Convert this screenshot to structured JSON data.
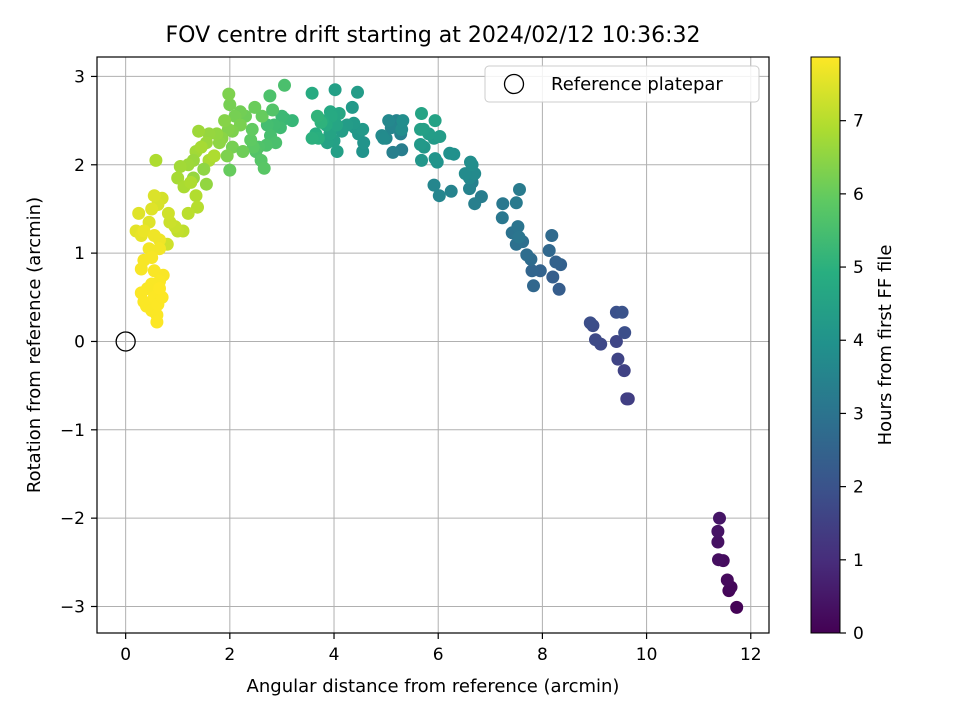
{
  "chart_data": {
    "type": "scatter",
    "title": "FOV centre drift starting at 2024/02/12 10:36:32",
    "xlabel": "Angular distance from reference (arcmin)",
    "ylabel": "Rotation from reference (arcmin)",
    "colorbar_label": "Hours from first FF file",
    "xlim": [
      -0.55,
      12.35
    ],
    "ylim": [
      -3.3,
      3.22
    ],
    "clim": [
      0,
      7.87
    ],
    "xticks": [
      0,
      2,
      4,
      6,
      8,
      10,
      12
    ],
    "xtick_labels": [
      "0",
      "2",
      "4",
      "6",
      "8",
      "10",
      "12"
    ],
    "yticks": [
      -3,
      -2,
      -1,
      0,
      1,
      2,
      3
    ],
    "ytick_labels": [
      "−3",
      "−2",
      "−1",
      "0",
      "1",
      "2",
      "3"
    ],
    "cticks": [
      0,
      1,
      2,
      3,
      4,
      5,
      6,
      7
    ],
    "ctick_labels": [
      "0",
      "1",
      "2",
      "3",
      "4",
      "5",
      "6",
      "7"
    ],
    "grid": true,
    "colormap": "viridis",
    "legend": {
      "placement": "top-right",
      "label": "Reference platepar"
    },
    "reference_point": {
      "x": 0,
      "y": 0
    },
    "points": [
      [
        11.73,
        -3.01,
        0.05
      ],
      [
        11.58,
        -2.82,
        0.1
      ],
      [
        11.62,
        -2.78,
        0.15
      ],
      [
        11.55,
        -2.7,
        0.2
      ],
      [
        11.47,
        -2.48,
        0.25
      ],
      [
        11.38,
        -2.47,
        0.3
      ],
      [
        11.37,
        -2.27,
        0.35
      ],
      [
        11.37,
        -2.15,
        0.4
      ],
      [
        11.4,
        -2.0,
        0.45
      ],
      [
        9.65,
        -0.65,
        1.4
      ],
      [
        9.62,
        -0.65,
        1.45
      ],
      [
        9.57,
        -0.33,
        1.55
      ],
      [
        9.45,
        -0.2,
        1.6
      ],
      [
        9.12,
        -0.03,
        1.7
      ],
      [
        9.02,
        0.02,
        1.75
      ],
      [
        8.97,
        0.18,
        1.8
      ],
      [
        8.92,
        0.21,
        1.85
      ],
      [
        9.42,
        0.0,
        1.65
      ],
      [
        9.58,
        0.1,
        1.9
      ],
      [
        9.42,
        0.33,
        1.95
      ],
      [
        9.53,
        0.33,
        2.0
      ],
      [
        8.32,
        0.59,
        2.3
      ],
      [
        8.2,
        0.73,
        2.35
      ],
      [
        8.35,
        0.87,
        2.4
      ],
      [
        8.26,
        0.9,
        2.45
      ],
      [
        7.96,
        0.8,
        2.5
      ],
      [
        7.8,
        0.8,
        2.55
      ],
      [
        7.83,
        0.63,
        2.6
      ],
      [
        8.13,
        1.03,
        2.65
      ],
      [
        8.18,
        1.2,
        2.7
      ],
      [
        7.78,
        0.93,
        2.75
      ],
      [
        7.7,
        0.98,
        2.8
      ],
      [
        7.62,
        1.13,
        2.85
      ],
      [
        7.5,
        1.1,
        2.9
      ],
      [
        7.42,
        1.23,
        2.95
      ],
      [
        7.53,
        1.3,
        3.0
      ],
      [
        7.55,
        1.18,
        3.05
      ],
      [
        7.23,
        1.4,
        3.1
      ],
      [
        7.24,
        1.56,
        3.15
      ],
      [
        7.5,
        1.57,
        3.2
      ],
      [
        7.56,
        1.72,
        3.25
      ],
      [
        6.83,
        1.64,
        3.3
      ],
      [
        6.7,
        1.56,
        3.35
      ],
      [
        6.65,
        1.8,
        3.4
      ],
      [
        6.6,
        1.73,
        3.45
      ],
      [
        6.25,
        1.7,
        3.5
      ],
      [
        6.02,
        1.65,
        3.55
      ],
      [
        5.92,
        1.77,
        3.6
      ],
      [
        6.6,
        1.85,
        3.65
      ],
      [
        6.7,
        1.9,
        3.7
      ],
      [
        6.52,
        1.9,
        3.75
      ],
      [
        6.65,
        2.0,
        3.8
      ],
      [
        6.62,
        2.03,
        3.85
      ],
      [
        6.3,
        2.12,
        3.9
      ],
      [
        6.22,
        2.13,
        3.95
      ],
      [
        5.98,
        2.03,
        4.0
      ],
      [
        5.94,
        2.07,
        4.05
      ],
      [
        5.68,
        2.05,
        4.1
      ],
      [
        5.73,
        2.2,
        4.15
      ],
      [
        5.66,
        2.23,
        4.2
      ],
      [
        5.92,
        2.3,
        4.25
      ],
      [
        6.03,
        2.32,
        4.3
      ],
      [
        5.82,
        2.35,
        4.35
      ],
      [
        5.72,
        2.4,
        4.4
      ],
      [
        5.66,
        2.4,
        4.45
      ],
      [
        5.94,
        2.5,
        4.5
      ],
      [
        5.68,
        2.58,
        4.55
      ],
      [
        5.3,
        2.17,
        3.3
      ],
      [
        5.13,
        2.14,
        3.35
      ],
      [
        5.28,
        2.35,
        3.4
      ],
      [
        5.18,
        2.45,
        3.45
      ],
      [
        5.2,
        2.5,
        3.5
      ],
      [
        5.1,
        2.42,
        3.55
      ],
      [
        5.0,
        2.3,
        3.6
      ],
      [
        5.05,
        2.5,
        3.65
      ],
      [
        4.92,
        2.33,
        3.7
      ],
      [
        4.95,
        2.3,
        3.75
      ],
      [
        5.3,
        2.4,
        3.8
      ],
      [
        5.32,
        2.5,
        3.85
      ],
      [
        4.55,
        2.15,
        4.0
      ],
      [
        4.57,
        2.25,
        4.05
      ],
      [
        4.47,
        2.35,
        4.1
      ],
      [
        4.4,
        2.42,
        4.15
      ],
      [
        4.55,
        2.4,
        4.2
      ],
      [
        4.38,
        2.47,
        4.25
      ],
      [
        4.25,
        2.45,
        4.3
      ],
      [
        4.15,
        2.38,
        4.35
      ],
      [
        4.06,
        2.15,
        4.4
      ],
      [
        4.0,
        2.27,
        4.45
      ],
      [
        3.87,
        2.25,
        4.5
      ],
      [
        3.92,
        2.35,
        4.55
      ],
      [
        4.05,
        2.45,
        4.6
      ],
      [
        4.1,
        2.58,
        4.65
      ],
      [
        3.93,
        2.6,
        4.7
      ],
      [
        3.95,
        2.55,
        4.75
      ],
      [
        3.85,
        2.45,
        4.8
      ],
      [
        3.78,
        2.5,
        4.85
      ],
      [
        3.65,
        2.35,
        4.9
      ],
      [
        3.7,
        2.3,
        4.95
      ],
      [
        3.58,
        2.3,
        5.0
      ],
      [
        3.75,
        2.48,
        5.05
      ],
      [
        3.68,
        2.55,
        5.1
      ],
      [
        4.35,
        2.65,
        4.2
      ],
      [
        4.45,
        2.82,
        4.3
      ],
      [
        4.02,
        2.85,
        4.4
      ],
      [
        3.58,
        2.81,
        4.8
      ],
      [
        3.2,
        2.5,
        5.2
      ],
      [
        3.05,
        2.52,
        5.25
      ],
      [
        3.0,
        2.55,
        5.3
      ],
      [
        2.97,
        2.42,
        5.35
      ],
      [
        2.85,
        2.45,
        5.4
      ],
      [
        2.72,
        2.45,
        5.45
      ],
      [
        2.78,
        2.33,
        5.5
      ],
      [
        2.88,
        2.25,
        5.55
      ],
      [
        2.7,
        2.22,
        5.6
      ],
      [
        2.55,
        2.2,
        5.65
      ],
      [
        2.5,
        2.15,
        5.7
      ],
      [
        2.6,
        2.05,
        5.75
      ],
      [
        2.66,
        1.96,
        5.8
      ],
      [
        2.45,
        2.2,
        5.85
      ],
      [
        2.4,
        2.28,
        5.9
      ],
      [
        2.43,
        2.4,
        5.95
      ],
      [
        2.62,
        2.55,
        6.0
      ],
      [
        2.48,
        2.65,
        6.05
      ],
      [
        2.77,
        2.78,
        5.6
      ],
      [
        3.05,
        2.9,
        5.55
      ],
      [
        2.82,
        2.62,
        5.7
      ],
      [
        2.3,
        2.55,
        6.1
      ],
      [
        2.2,
        2.6,
        6.15
      ],
      [
        2.1,
        2.55,
        6.2
      ],
      [
        2.2,
        2.45,
        6.25
      ],
      [
        2.05,
        2.38,
        6.3
      ],
      [
        1.97,
        2.4,
        6.35
      ],
      [
        1.9,
        2.5,
        6.4
      ],
      [
        1.85,
        2.3,
        6.45
      ],
      [
        1.8,
        2.25,
        6.5
      ],
      [
        1.75,
        2.35,
        6.55
      ],
      [
        1.6,
        2.35,
        6.6
      ],
      [
        1.55,
        2.25,
        6.65
      ],
      [
        1.4,
        2.38,
        6.7
      ],
      [
        1.35,
        2.15,
        6.75
      ],
      [
        1.45,
        2.2,
        6.8
      ],
      [
        1.6,
        2.05,
        6.85
      ],
      [
        1.7,
        2.1,
        6.9
      ],
      [
        2.05,
        2.2,
        6.2
      ],
      [
        1.95,
        2.1,
        6.3
      ],
      [
        2.25,
        2.15,
        6.1
      ],
      [
        2.0,
        1.94,
        6.0
      ],
      [
        2.0,
        2.68,
        6.2
      ],
      [
        1.98,
        2.8,
        6.3
      ],
      [
        1.5,
        1.95,
        6.5
      ],
      [
        1.55,
        1.78,
        6.55
      ],
      [
        1.3,
        1.85,
        6.6
      ],
      [
        1.3,
        2.05,
        6.65
      ],
      [
        1.2,
        2.0,
        6.7
      ],
      [
        1.05,
        1.98,
        6.75
      ],
      [
        1.0,
        1.85,
        6.8
      ],
      [
        1.12,
        1.75,
        6.85
      ],
      [
        1.25,
        1.8,
        6.9
      ],
      [
        1.35,
        1.65,
        6.95
      ],
      [
        1.38,
        1.52,
        7.0
      ],
      [
        1.2,
        1.45,
        7.05
      ],
      [
        1.1,
        1.25,
        7.1
      ],
      [
        1.0,
        1.25,
        7.15
      ],
      [
        0.95,
        1.3,
        7.2
      ],
      [
        0.85,
        1.35,
        7.25
      ],
      [
        0.82,
        1.45,
        7.3
      ],
      [
        0.7,
        1.62,
        7.35
      ],
      [
        0.62,
        1.55,
        7.4
      ],
      [
        0.55,
        1.65,
        7.45
      ],
      [
        0.5,
        1.5,
        7.5
      ],
      [
        0.45,
        1.35,
        7.5
      ],
      [
        0.58,
        2.05,
        6.9
      ],
      [
        0.8,
        1.1,
        7.3
      ],
      [
        0.25,
        1.45,
        7.5
      ],
      [
        0.2,
        1.25,
        7.55
      ],
      [
        0.3,
        1.2,
        7.6
      ],
      [
        0.35,
        1.25,
        7.65
      ],
      [
        0.55,
        1.2,
        7.7
      ],
      [
        0.65,
        1.15,
        7.7
      ],
      [
        0.65,
        1.05,
        7.75
      ],
      [
        0.45,
        1.05,
        7.75
      ],
      [
        0.5,
        0.95,
        7.8
      ],
      [
        0.35,
        0.92,
        7.8
      ],
      [
        0.3,
        0.82,
        7.8
      ],
      [
        0.55,
        0.8,
        7.82
      ],
      [
        0.72,
        0.75,
        7.82
      ],
      [
        0.65,
        0.68,
        7.83
      ],
      [
        0.5,
        0.65,
        7.83
      ],
      [
        0.42,
        0.6,
        7.83
      ],
      [
        0.3,
        0.55,
        7.84
      ],
      [
        0.35,
        0.45,
        7.84
      ],
      [
        0.4,
        0.4,
        7.85
      ],
      [
        0.5,
        0.35,
        7.85
      ],
      [
        0.6,
        0.3,
        7.85
      ],
      [
        0.6,
        0.22,
        7.86
      ],
      [
        0.55,
        0.5,
        7.86
      ],
      [
        0.62,
        0.42,
        7.86
      ],
      [
        0.7,
        0.5,
        7.86
      ],
      [
        0.65,
        0.6,
        7.87
      ]
    ]
  }
}
